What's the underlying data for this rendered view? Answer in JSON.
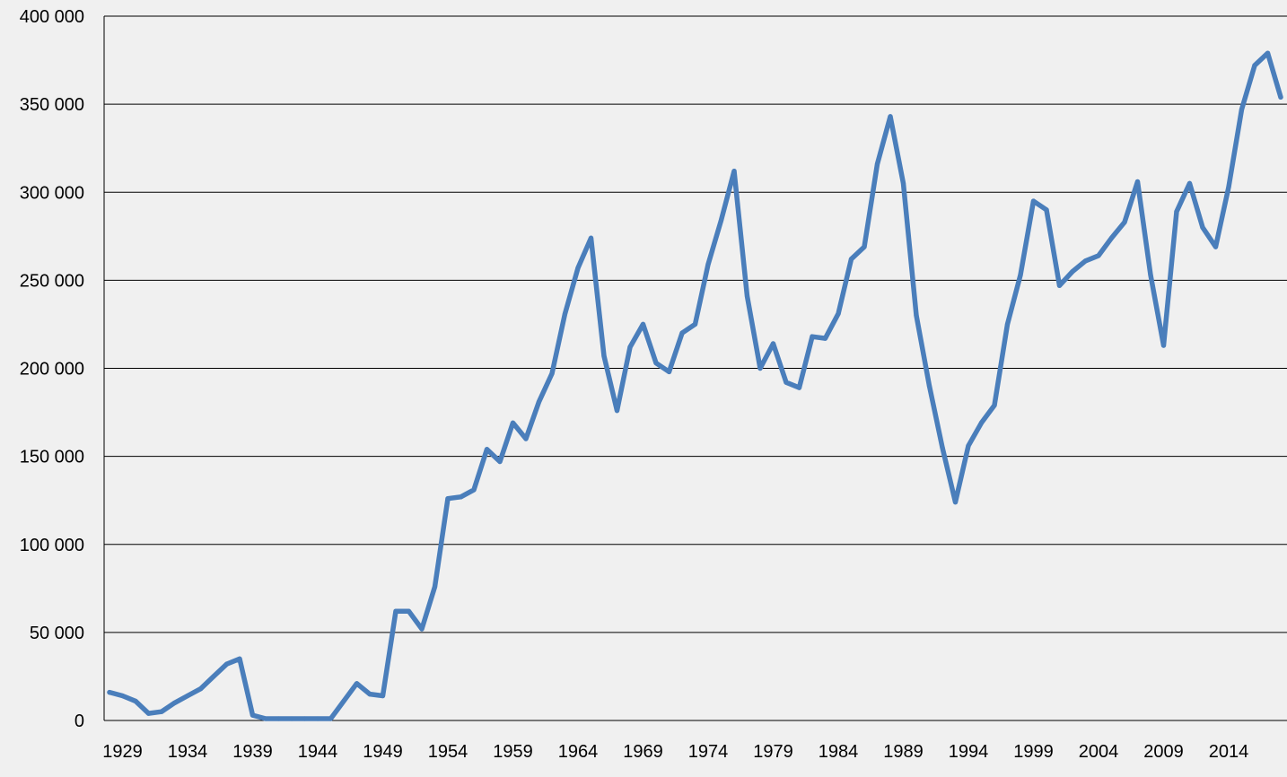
{
  "chart_data": {
    "type": "line",
    "title": "",
    "xlabel": "",
    "ylabel": "",
    "x_start": 1928,
    "x_tick_labels": [
      "1929",
      "1934",
      "1939",
      "1944",
      "1949",
      "1954",
      "1959",
      "1964",
      "1969",
      "1974",
      "1979",
      "1984",
      "1989",
      "1994",
      "1999",
      "2004",
      "2009",
      "2014"
    ],
    "y_tick_labels": [
      "0",
      "50 000",
      "100 000",
      "150 000",
      "200 000",
      "250 000",
      "300 000",
      "350 000",
      "400 000"
    ],
    "ylim": [
      0,
      400000
    ],
    "grid": "horizontal",
    "line_color": "#4a7ebb",
    "series": [
      {
        "values": [
          16000,
          14000,
          11000,
          4000,
          5000,
          10000,
          14000,
          18000,
          25000,
          32000,
          35000,
          3000,
          1000,
          1000,
          1000,
          1000,
          1000,
          1000,
          11000,
          21000,
          15000,
          14000,
          62000,
          62000,
          52000,
          76000,
          126000,
          127000,
          131000,
          154000,
          147000,
          169000,
          160000,
          181000,
          197000,
          231000,
          257000,
          274000,
          207000,
          176000,
          212000,
          225000,
          203000,
          198000,
          220000,
          225000,
          259000,
          284000,
          312000,
          241000,
          200000,
          214000,
          192000,
          189000,
          218000,
          217000,
          231000,
          262000,
          269000,
          316000,
          343000,
          305000,
          230000,
          190000,
          155000,
          124000,
          156000,
          169000,
          179000,
          225000,
          253000,
          295000,
          290000,
          247000,
          255000,
          261000,
          264000,
          274000,
          283000,
          306000,
          253000,
          213000,
          289000,
          305000,
          280000,
          269000,
          303000,
          347000,
          372000,
          379000,
          354000
        ]
      }
    ]
  }
}
